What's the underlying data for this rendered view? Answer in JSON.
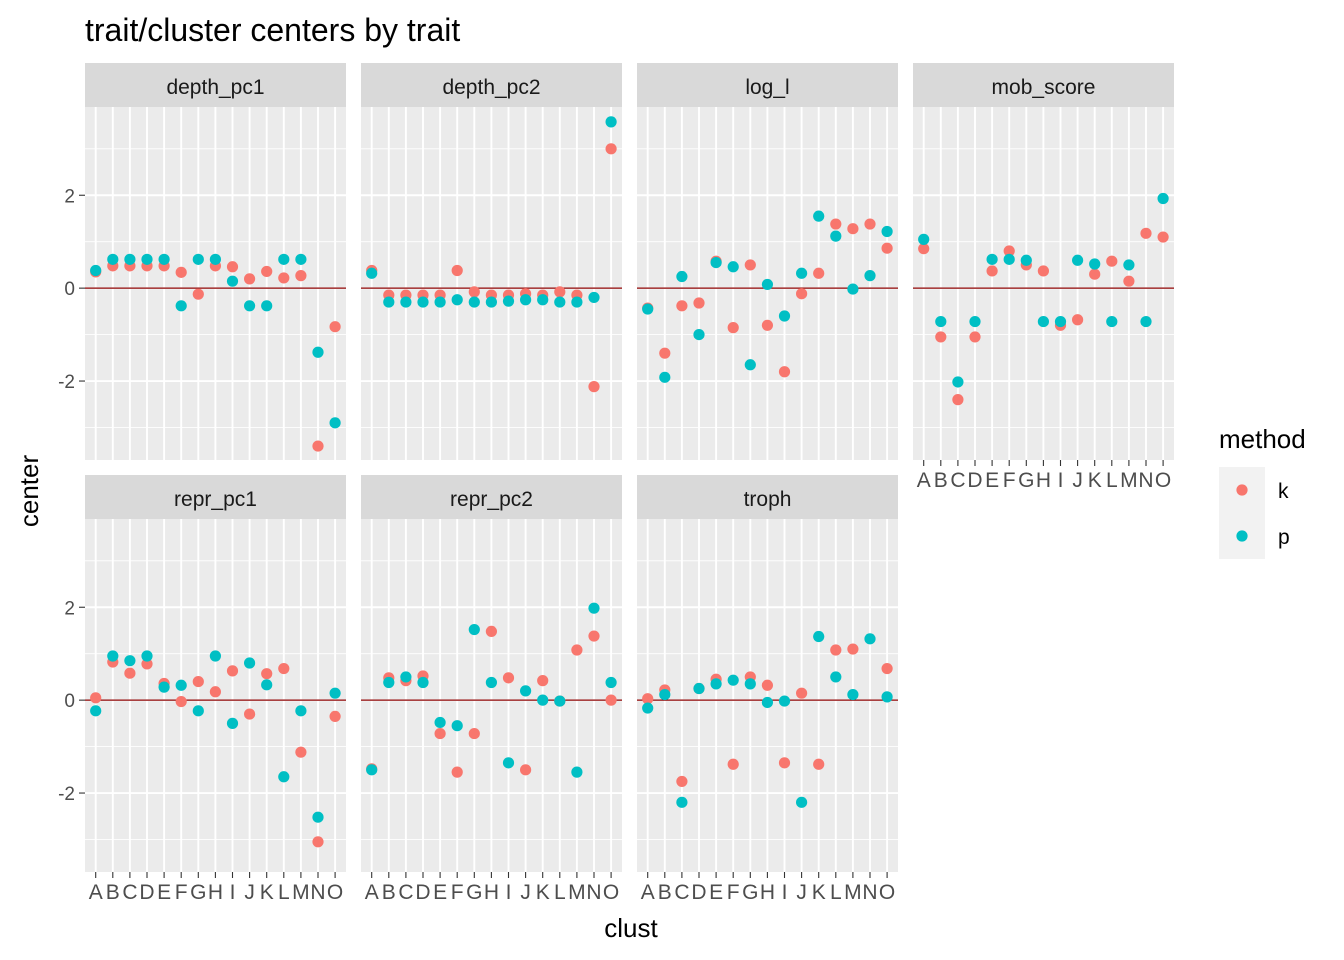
{
  "chart_data": {
    "type": "scatter",
    "title": "trait/cluster centers by trait",
    "xlabel": "clust",
    "ylabel": "center",
    "categories": [
      "A",
      "B",
      "C",
      "D",
      "E",
      "F",
      "G",
      "H",
      "I",
      "J",
      "K",
      "L",
      "M",
      "N",
      "O"
    ],
    "ylim": [
      -3.7,
      3.9
    ],
    "yticks": [
      -2,
      0,
      2
    ],
    "ytick_labels": [
      "-2",
      "0",
      "2"
    ],
    "hline": 0,
    "grid": true,
    "legend": {
      "title": "method",
      "position": "right",
      "entries": [
        {
          "key": "k",
          "label": "k",
          "color": "#F8766D"
        },
        {
          "key": "p",
          "label": "p",
          "color": "#00BFC4"
        }
      ]
    },
    "panels": [
      {
        "name": "depth_pc1",
        "series": [
          {
            "name": "k",
            "values": [
              0.35,
              0.48,
              0.48,
              0.48,
              0.48,
              0.34,
              -0.13,
              0.48,
              0.46,
              0.2,
              0.36,
              0.22,
              0.27,
              -3.4,
              -0.83
            ]
          },
          {
            "name": "p",
            "values": [
              0.38,
              0.62,
              0.62,
              0.62,
              0.62,
              -0.38,
              0.62,
              0.62,
              0.15,
              -0.38,
              -0.38,
              0.62,
              0.62,
              -1.38,
              -2.9
            ]
          }
        ]
      },
      {
        "name": "depth_pc2",
        "series": [
          {
            "name": "k",
            "values": [
              0.38,
              -0.15,
              -0.15,
              -0.15,
              -0.15,
              0.38,
              -0.08,
              -0.15,
              -0.15,
              -0.12,
              -0.15,
              -0.08,
              -0.15,
              -2.12,
              3.0
            ]
          },
          {
            "name": "p",
            "values": [
              0.32,
              -0.3,
              -0.3,
              -0.3,
              -0.3,
              -0.25,
              -0.3,
              -0.3,
              -0.28,
              -0.25,
              -0.25,
              -0.3,
              -0.3,
              -0.2,
              3.58
            ]
          }
        ]
      },
      {
        "name": "log_l",
        "series": [
          {
            "name": "k",
            "values": [
              -0.43,
              -1.4,
              -0.38,
              -0.32,
              0.58,
              -0.85,
              0.5,
              -0.8,
              -1.8,
              -0.12,
              0.32,
              1.38,
              1.28,
              1.38,
              0.86
            ]
          },
          {
            "name": "p",
            "values": [
              -0.45,
              -1.92,
              0.25,
              -1.0,
              0.55,
              0.46,
              -1.65,
              0.08,
              -0.6,
              0.32,
              1.55,
              1.12,
              -0.02,
              0.27,
              1.22
            ]
          }
        ]
      },
      {
        "name": "mob_score",
        "series": [
          {
            "name": "k",
            "values": [
              0.85,
              -1.05,
              -2.4,
              -1.05,
              0.37,
              0.8,
              0.5,
              0.37,
              -0.8,
              -0.68,
              0.3,
              0.58,
              0.15,
              1.18,
              1.1
            ]
          },
          {
            "name": "p",
            "values": [
              1.05,
              -0.72,
              -2.02,
              -0.72,
              0.62,
              0.62,
              0.6,
              -0.72,
              -0.72,
              0.6,
              0.52,
              -0.72,
              0.5,
              -0.72,
              1.93
            ]
          }
        ]
      },
      {
        "name": "repr_pc1",
        "series": [
          {
            "name": "k",
            "values": [
              0.05,
              0.82,
              0.58,
              0.78,
              0.36,
              -0.03,
              0.4,
              0.18,
              0.63,
              -0.3,
              0.57,
              0.68,
              -1.12,
              -3.05,
              -0.35
            ]
          },
          {
            "name": "p",
            "values": [
              -0.23,
              0.95,
              0.85,
              0.95,
              0.28,
              0.32,
              -0.23,
              0.95,
              -0.5,
              0.8,
              0.33,
              -1.65,
              -0.23,
              -2.52,
              0.15
            ]
          }
        ]
      },
      {
        "name": "repr_pc2",
        "series": [
          {
            "name": "k",
            "values": [
              -1.48,
              0.48,
              0.42,
              0.52,
              -0.72,
              -1.55,
              -0.72,
              1.48,
              0.48,
              -1.5,
              0.42,
              -0.02,
              1.08,
              1.38,
              0.0
            ]
          },
          {
            "name": "p",
            "values": [
              -1.5,
              0.38,
              0.5,
              0.38,
              -0.48,
              -0.55,
              1.52,
              0.38,
              -1.35,
              0.2,
              0.0,
              -0.02,
              -1.55,
              1.98,
              0.38
            ]
          }
        ]
      },
      {
        "name": "troph",
        "series": [
          {
            "name": "k",
            "values": [
              0.03,
              0.22,
              -1.75,
              0.25,
              0.45,
              -1.38,
              0.5,
              0.32,
              -1.35,
              0.15,
              -1.38,
              1.08,
              1.1,
              null,
              0.68
            ]
          },
          {
            "name": "p",
            "values": [
              -0.17,
              0.12,
              -2.2,
              0.25,
              0.35,
              0.43,
              0.35,
              -0.05,
              -0.02,
              -2.2,
              1.37,
              0.5,
              0.12,
              1.32,
              0.07
            ]
          }
        ]
      }
    ]
  }
}
